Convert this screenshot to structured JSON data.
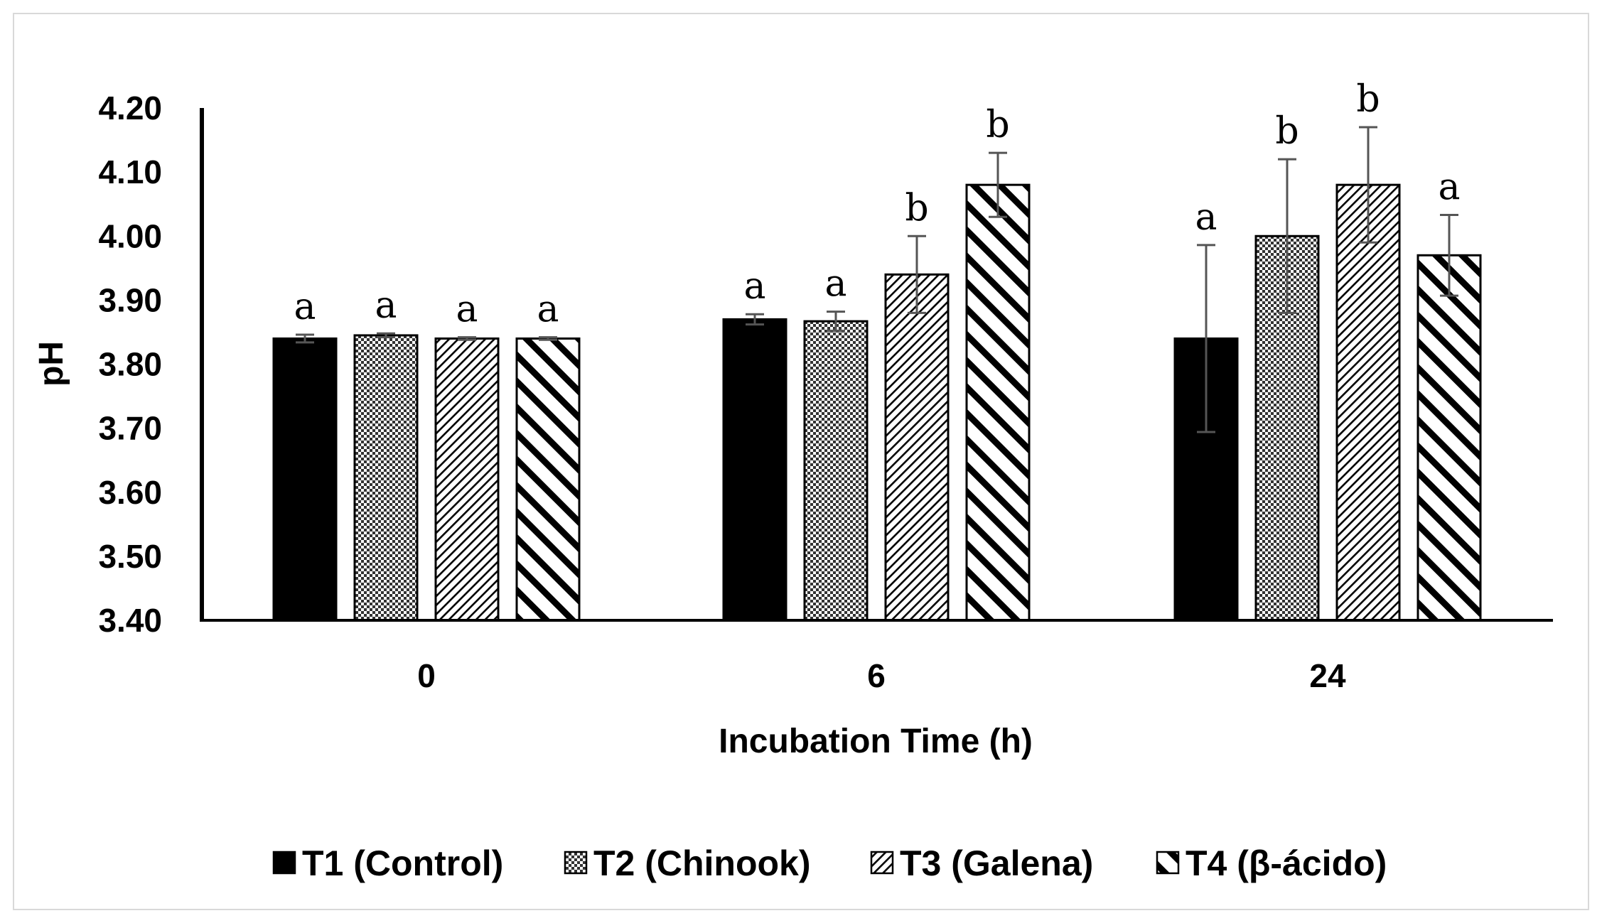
{
  "chart_data": {
    "type": "bar",
    "title": "",
    "xlabel": "Incubation Time (h)",
    "ylabel": "pH",
    "ylim": [
      3.4,
      4.2
    ],
    "yticks": [
      "3.40",
      "3.50",
      "3.60",
      "3.70",
      "3.80",
      "3.90",
      "4.00",
      "4.10",
      "4.20"
    ],
    "categories": [
      "0",
      "6",
      "24"
    ],
    "grid": false,
    "legend_position": "bottom",
    "series": [
      {
        "name": "T1 (Control)",
        "pattern": "solid",
        "color": "#000000",
        "values": [
          3.84,
          3.87,
          3.84
        ],
        "errors": [
          0.006,
          0.008,
          0.146
        ],
        "letters": [
          "a",
          "a",
          "a"
        ]
      },
      {
        "name": "T2 (Chinook)",
        "pattern": "dots",
        "color": "#000000",
        "values": [
          3.845,
          3.867,
          4.0
        ],
        "errors": [
          0.003,
          0.015,
          0.12
        ],
        "letters": [
          "a",
          "a",
          "b"
        ]
      },
      {
        "name": "T3 (Galena)",
        "pattern": "thin-diagonal",
        "color": "#000000",
        "values": [
          3.84,
          3.94,
          4.08
        ],
        "errors": [
          0.002,
          0.06,
          0.09
        ],
        "letters": [
          "a",
          "b",
          "b"
        ]
      },
      {
        "name": "T4 (β-ácido)",
        "pattern": "wide-diagonal",
        "color": "#000000",
        "values": [
          3.84,
          4.08,
          3.97
        ],
        "errors": [
          0.002,
          0.05,
          0.063
        ],
        "letters": [
          "a",
          "b",
          "a"
        ]
      }
    ]
  }
}
